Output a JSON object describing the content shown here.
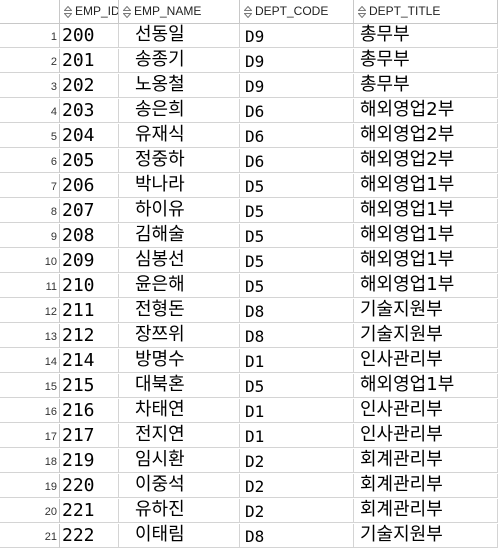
{
  "columns": {
    "emp_id": "EMP_ID",
    "emp_name": "EMP_NAME",
    "dept_code": "DEPT_CODE",
    "dept_title": "DEPT_TITLE"
  },
  "sort_icon": "sort-arrows-icon",
  "rows": [
    {
      "num": "1",
      "emp_id": "200",
      "emp_name": "선동일",
      "dept_code": "D9",
      "dept_title": "총무부"
    },
    {
      "num": "2",
      "emp_id": "201",
      "emp_name": "송종기",
      "dept_code": "D9",
      "dept_title": "총무부"
    },
    {
      "num": "3",
      "emp_id": "202",
      "emp_name": "노옹철",
      "dept_code": "D9",
      "dept_title": "총무부"
    },
    {
      "num": "4",
      "emp_id": "203",
      "emp_name": "송은희",
      "dept_code": "D6",
      "dept_title": "해외영업2부"
    },
    {
      "num": "5",
      "emp_id": "204",
      "emp_name": "유재식",
      "dept_code": "D6",
      "dept_title": "해외영업2부"
    },
    {
      "num": "6",
      "emp_id": "205",
      "emp_name": "정중하",
      "dept_code": "D6",
      "dept_title": "해외영업2부"
    },
    {
      "num": "7",
      "emp_id": "206",
      "emp_name": "박나라",
      "dept_code": "D5",
      "dept_title": "해외영업1부"
    },
    {
      "num": "8",
      "emp_id": "207",
      "emp_name": "하이유",
      "dept_code": "D5",
      "dept_title": "해외영업1부"
    },
    {
      "num": "9",
      "emp_id": "208",
      "emp_name": "김해술",
      "dept_code": "D5",
      "dept_title": "해외영업1부"
    },
    {
      "num": "10",
      "emp_id": "209",
      "emp_name": "심봉선",
      "dept_code": "D5",
      "dept_title": "해외영업1부"
    },
    {
      "num": "11",
      "emp_id": "210",
      "emp_name": "윤은해",
      "dept_code": "D5",
      "dept_title": "해외영업1부"
    },
    {
      "num": "12",
      "emp_id": "211",
      "emp_name": "전형돈",
      "dept_code": "D8",
      "dept_title": "기술지원부"
    },
    {
      "num": "13",
      "emp_id": "212",
      "emp_name": "장쯔위",
      "dept_code": "D8",
      "dept_title": "기술지원부"
    },
    {
      "num": "14",
      "emp_id": "214",
      "emp_name": "방명수",
      "dept_code": "D1",
      "dept_title": "인사관리부"
    },
    {
      "num": "15",
      "emp_id": "215",
      "emp_name": "대북혼",
      "dept_code": "D5",
      "dept_title": "해외영업1부"
    },
    {
      "num": "16",
      "emp_id": "216",
      "emp_name": "차태연",
      "dept_code": "D1",
      "dept_title": "인사관리부"
    },
    {
      "num": "17",
      "emp_id": "217",
      "emp_name": "전지연",
      "dept_code": "D1",
      "dept_title": "인사관리부"
    },
    {
      "num": "18",
      "emp_id": "219",
      "emp_name": "임시환",
      "dept_code": "D2",
      "dept_title": "회계관리부"
    },
    {
      "num": "19",
      "emp_id": "220",
      "emp_name": "이중석",
      "dept_code": "D2",
      "dept_title": "회계관리부"
    },
    {
      "num": "20",
      "emp_id": "221",
      "emp_name": "유하진",
      "dept_code": "D2",
      "dept_title": "회계관리부"
    },
    {
      "num": "21",
      "emp_id": "222",
      "emp_name": "이태림",
      "dept_code": "D8",
      "dept_title": "기술지원부"
    }
  ]
}
